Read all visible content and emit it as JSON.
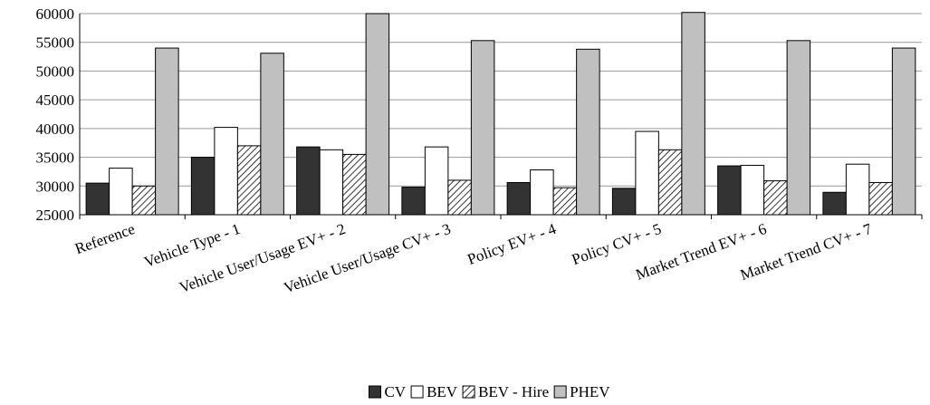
{
  "chart_data": {
    "type": "bar",
    "categories": [
      "Reference",
      "Vehicle Type - 1",
      "Vehicle User/Usage EV+ - 2",
      "Vehicle User/Usage CV+ - 3",
      "Policy EV+ - 4",
      "Policy CV+ - 5",
      "Market Trend EV+ - 6",
      "Market Trend CV+ - 7"
    ],
    "series": [
      {
        "name": "CV",
        "color": "#333333",
        "values": [
          30500,
          35000,
          36800,
          29800,
          30600,
          29600,
          33500,
          28900
        ]
      },
      {
        "name": "BEV",
        "color": "#ffffff",
        "values": [
          33100,
          40200,
          36300,
          36800,
          32800,
          39500,
          33600,
          33800
        ]
      },
      {
        "name": "BEV - Hire",
        "color": "#ffffff",
        "hatch": true,
        "values": [
          30000,
          37000,
          35500,
          31000,
          29700,
          36300,
          30900,
          30600
        ]
      },
      {
        "name": "PHEV",
        "color": "#c0c0c0",
        "values": [
          54000,
          53100,
          60000,
          55300,
          53800,
          60200,
          55300,
          54000
        ]
      }
    ],
    "ylim": [
      25000,
      60000
    ],
    "yticks": [
      25000,
      30000,
      35000,
      40000,
      45000,
      50000,
      55000,
      60000
    ],
    "grid": true,
    "legend": "bottom"
  }
}
